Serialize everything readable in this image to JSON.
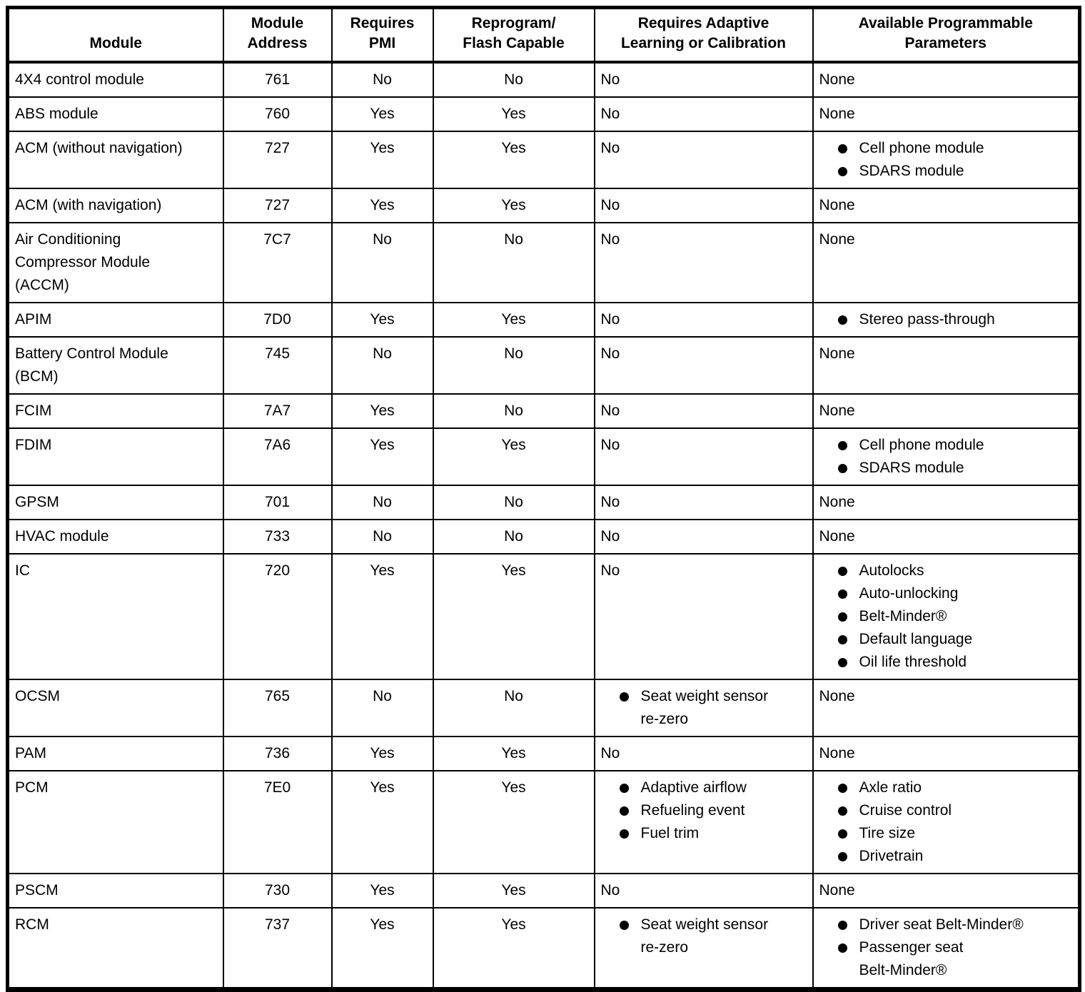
{
  "table": {
    "name": "Module programming reference table",
    "columns": [
      {
        "label": "Module"
      },
      {
        "label": "Module\nAddress"
      },
      {
        "label": "Requires\nPMI"
      },
      {
        "label": "Reprogram/\nFlash Capable"
      },
      {
        "label": "Requires Adaptive\nLearning or Calibration"
      },
      {
        "label": "Available Programmable\nParameters"
      }
    ],
    "rows": [
      {
        "module": "4X4 control module",
        "address": "761",
        "requires_pmi": "No",
        "flash_capable": "No",
        "adaptive": "No",
        "params": "None"
      },
      {
        "module": "ABS module",
        "address": "760",
        "requires_pmi": "Yes",
        "flash_capable": "Yes",
        "adaptive": "No",
        "params": "None"
      },
      {
        "module": "ACM (without navigation)",
        "address": "727",
        "requires_pmi": "Yes",
        "flash_capable": "Yes",
        "adaptive": "No",
        "params": [
          "Cell phone module",
          "SDARS module"
        ]
      },
      {
        "module": "ACM (with navigation)",
        "address": "727",
        "requires_pmi": "Yes",
        "flash_capable": "Yes",
        "adaptive": "No",
        "params": "None"
      },
      {
        "module": "Air Conditioning\nCompressor Module\n(ACCM)",
        "address": "7C7",
        "requires_pmi": "No",
        "flash_capable": "No",
        "adaptive": "No",
        "params": "None"
      },
      {
        "module": "APIM",
        "address": "7D0",
        "requires_pmi": "Yes",
        "flash_capable": "Yes",
        "adaptive": "No",
        "params": [
          "Stereo pass-through"
        ]
      },
      {
        "module": "Battery Control Module\n(BCM)",
        "address": "745",
        "requires_pmi": "No",
        "flash_capable": "No",
        "adaptive": "No",
        "params": "None"
      },
      {
        "module": "FCIM",
        "address": "7A7",
        "requires_pmi": "Yes",
        "flash_capable": "No",
        "adaptive": "No",
        "params": "None"
      },
      {
        "module": "FDIM",
        "address": "7A6",
        "requires_pmi": "Yes",
        "flash_capable": "Yes",
        "adaptive": "No",
        "params": [
          "Cell phone module",
          "SDARS module"
        ]
      },
      {
        "module": "GPSM",
        "address": "701",
        "requires_pmi": "No",
        "flash_capable": "No",
        "adaptive": "No",
        "params": "None"
      },
      {
        "module": "HVAC module",
        "address": "733",
        "requires_pmi": "No",
        "flash_capable": "No",
        "adaptive": "No",
        "params": "None"
      },
      {
        "module": "IC",
        "address": "720",
        "requires_pmi": "Yes",
        "flash_capable": "Yes",
        "adaptive": "No",
        "params": [
          "Autolocks",
          "Auto-unlocking",
          "Belt-Minder®",
          "Default language",
          "Oil life threshold"
        ]
      },
      {
        "module": "OCSM",
        "address": "765",
        "requires_pmi": "No",
        "flash_capable": "No",
        "adaptive": [
          "Seat weight sensor\nre-zero"
        ],
        "params": "None"
      },
      {
        "module": "PAM",
        "address": "736",
        "requires_pmi": "Yes",
        "flash_capable": "Yes",
        "adaptive": "No",
        "params": "None"
      },
      {
        "module": "PCM",
        "address": "7E0",
        "requires_pmi": "Yes",
        "flash_capable": "Yes",
        "adaptive": [
          "Adaptive airflow",
          "Refueling event",
          "Fuel trim"
        ],
        "params": [
          "Axle ratio",
          "Cruise control",
          "Tire size",
          "Drivetrain"
        ]
      },
      {
        "module": "PSCM",
        "address": "730",
        "requires_pmi": "Yes",
        "flash_capable": "Yes",
        "adaptive": "No",
        "params": "None"
      },
      {
        "module": "RCM",
        "address": "737",
        "requires_pmi": "Yes",
        "flash_capable": "Yes",
        "adaptive": [
          "Seat weight sensor\nre-zero"
        ],
        "params": [
          "Driver seat Belt-Minder®",
          "Passenger seat\nBelt-Minder®"
        ]
      }
    ]
  }
}
